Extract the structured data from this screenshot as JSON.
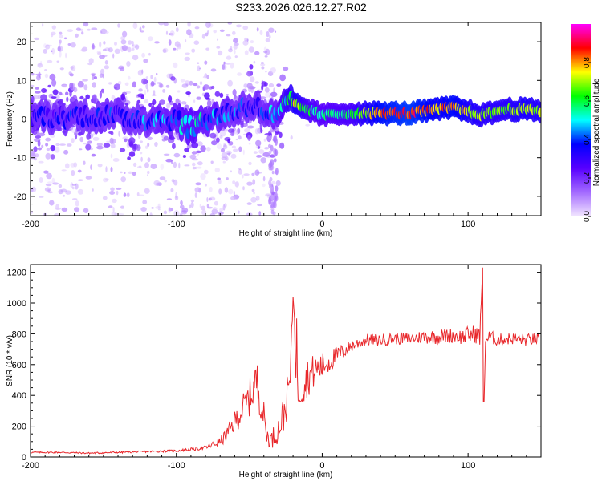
{
  "title": "S233.2026.026.12.27.R02",
  "colors": {
    "snr_line": "#e8262a",
    "axis": "#000000",
    "colormap": [
      "#f2e6ff",
      "#a46bff",
      "#5800ff",
      "#0000ff",
      "#00ffff",
      "#00ff00",
      "#ffff00",
      "#ff0000",
      "#ff00ff"
    ]
  },
  "chart_data": [
    {
      "type": "heatmap",
      "title": "",
      "xlabel": "Height of straight line (km)",
      "ylabel": "Frequency (Hz)",
      "xlim": [
        -200,
        150
      ],
      "ylim": [
        -25,
        25
      ],
      "xticks": [
        -200,
        -100,
        0,
        100
      ],
      "xtick_labels": [
        "-200",
        "-100",
        "0",
        "100"
      ],
      "yticks": [
        -20,
        -10,
        0,
        10,
        20
      ],
      "ytick_labels": [
        "-20",
        "-10",
        "0",
        "10",
        "20"
      ],
      "colorbar": {
        "label": "Normalized spectral amplitude",
        "range": [
          0.0,
          1.0
        ],
        "ticks": [
          0.0,
          0.2,
          0.4,
          0.6,
          0.8
        ],
        "tick_labels": [
          "0.0",
          "0.2",
          "0.4",
          "0.6",
          "0.8"
        ]
      },
      "ridge": [
        {
          "x": -200,
          "f": 1.0,
          "a": 0.35
        },
        {
          "x": -180,
          "f": 0.5,
          "a": 0.35
        },
        {
          "x": -160,
          "f": 1.0,
          "a": 0.4
        },
        {
          "x": -140,
          "f": 0.5,
          "a": 0.4
        },
        {
          "x": -120,
          "f": 0.0,
          "a": 0.45
        },
        {
          "x": -100,
          "f": 0.0,
          "a": 0.5
        },
        {
          "x": -90,
          "f": -2.5,
          "a": 0.55
        },
        {
          "x": -80,
          "f": 0.0,
          "a": 0.5
        },
        {
          "x": -60,
          "f": 2.0,
          "a": 0.45
        },
        {
          "x": -50,
          "f": 4.0,
          "a": 0.4
        },
        {
          "x": -40,
          "f": 2.0,
          "a": 0.45
        },
        {
          "x": -30,
          "f": 0.0,
          "a": 0.5
        },
        {
          "x": -24,
          "f": 5.0,
          "a": 0.65
        },
        {
          "x": -18,
          "f": 3.5,
          "a": 0.75
        },
        {
          "x": -10,
          "f": 2.5,
          "a": 0.6
        },
        {
          "x": 0,
          "f": 1.0,
          "a": 0.55
        },
        {
          "x": 20,
          "f": 1.5,
          "a": 0.6
        },
        {
          "x": 40,
          "f": 1.5,
          "a": 0.85
        },
        {
          "x": 60,
          "f": 1.5,
          "a": 0.9
        },
        {
          "x": 80,
          "f": 2.5,
          "a": 0.8
        },
        {
          "x": 90,
          "f": 3.0,
          "a": 0.85
        },
        {
          "x": 100,
          "f": 2.0,
          "a": 0.75
        },
        {
          "x": 110,
          "f": 1.0,
          "a": 0.7
        },
        {
          "x": 125,
          "f": 2.5,
          "a": 0.7
        },
        {
          "x": 140,
          "f": 2.5,
          "a": 0.75
        },
        {
          "x": 150,
          "f": 2.0,
          "a": 0.7
        }
      ]
    },
    {
      "type": "line",
      "title": "",
      "xlabel": "Height of straight line (km)",
      "ylabel": "SNR (10 * v/v)",
      "xlim": [
        -200,
        150
      ],
      "ylim": [
        0,
        1250
      ],
      "xticks": [
        -200,
        -100,
        0,
        100
      ],
      "xtick_labels": [
        "-200",
        "-100",
        "0",
        "100"
      ],
      "yticks": [
        0,
        200,
        400,
        600,
        800,
        1000,
        1200
      ],
      "ytick_labels": [
        "0",
        "200",
        "400",
        "600",
        "800",
        "1000",
        "1200"
      ],
      "series": [
        {
          "name": "SNR",
          "x": [
            -200,
            -180,
            -160,
            -140,
            -120,
            -100,
            -90,
            -80,
            -70,
            -65,
            -60,
            -55,
            -50,
            -45,
            -40,
            -38,
            -35,
            -30,
            -27,
            -25,
            -22,
            -20,
            -19,
            -18,
            -17,
            -15,
            -10,
            -5,
            0,
            5,
            10,
            15,
            20,
            25,
            30,
            40,
            50,
            60,
            70,
            80,
            85,
            90,
            95,
            100,
            105,
            108,
            110,
            111,
            112,
            115,
            120,
            130,
            140,
            150
          ],
          "y": [
            30,
            30,
            25,
            30,
            35,
            40,
            50,
            60,
            100,
            150,
            230,
            300,
            380,
            500,
            260,
            140,
            110,
            180,
            260,
            330,
            500,
            1040,
            900,
            450,
            420,
            450,
            520,
            560,
            590,
            620,
            660,
            690,
            720,
            740,
            760,
            760,
            770,
            770,
            780,
            780,
            790,
            790,
            780,
            790,
            800,
            780,
            1230,
            360,
            760,
            780,
            760,
            770,
            760,
            770
          ],
          "amp": [
            5,
            5,
            5,
            6,
            6,
            8,
            10,
            14,
            30,
            50,
            70,
            100,
            120,
            150,
            100,
            60,
            60,
            90,
            120,
            130,
            150,
            0,
            0,
            120,
            130,
            140,
            130,
            110,
            90,
            80,
            60,
            50,
            40,
            40,
            40,
            40,
            40,
            40,
            45,
            50,
            50,
            50,
            50,
            60,
            60,
            60,
            0,
            0,
            50,
            45,
            40,
            40,
            40,
            40
          ]
        }
      ]
    }
  ]
}
